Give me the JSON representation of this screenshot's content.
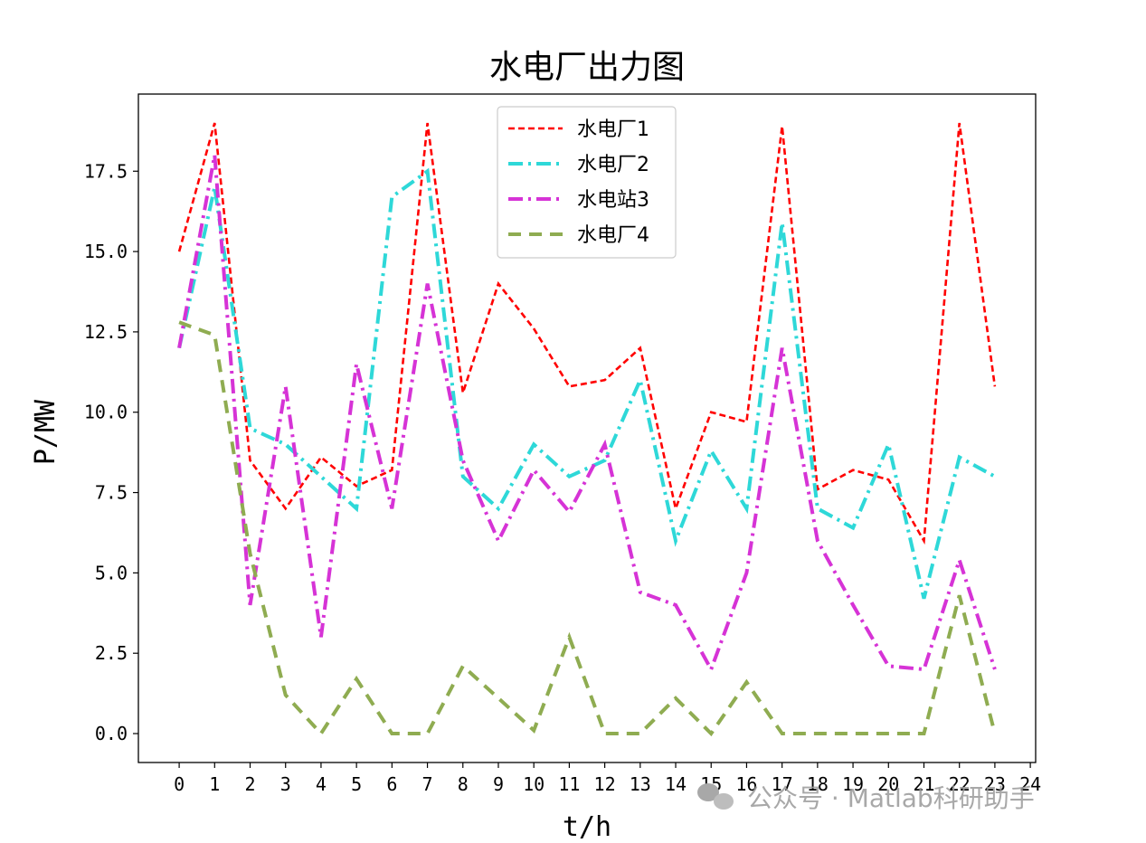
{
  "chart_data": {
    "type": "line",
    "title": "水电厂出力图",
    "xlabel": "t/h",
    "ylabel": "P/MW",
    "x": [
      0,
      1,
      2,
      3,
      4,
      5,
      6,
      7,
      8,
      9,
      10,
      11,
      12,
      13,
      14,
      15,
      16,
      17,
      18,
      19,
      20,
      21,
      22,
      23
    ],
    "xticks": [
      "0",
      "1",
      "2",
      "3",
      "4",
      "5",
      "6",
      "7",
      "8",
      "9",
      "10",
      "11",
      "12",
      "13",
      "14",
      "15",
      "16",
      "17",
      "18",
      "19",
      "20",
      "21",
      "22",
      "23",
      "24"
    ],
    "xlim": [
      -1.15,
      24.15
    ],
    "ylim": [
      -0.9,
      19.9
    ],
    "yticks": [
      "0.0",
      "2.5",
      "5.0",
      "7.5",
      "10.0",
      "12.5",
      "15.0",
      "17.5"
    ],
    "legend_position": "top-center",
    "grid": false,
    "series": [
      {
        "name": "水电厂1",
        "color": "#ff0000",
        "dash": "dashed",
        "values": [
          15.0,
          19.0,
          8.5,
          7.0,
          8.6,
          7.7,
          8.2,
          19.0,
          10.6,
          14.0,
          12.6,
          10.8,
          11.0,
          12.0,
          7.0,
          10.0,
          9.7,
          18.9,
          7.6,
          8.2,
          7.9,
          6.0,
          19.0,
          10.8
        ]
      },
      {
        "name": "水电厂2",
        "color": "#2ed8d8",
        "dash": "dashdot",
        "values": [
          12.0,
          17.0,
          9.5,
          9.0,
          8.0,
          7.0,
          16.7,
          17.5,
          8.0,
          7.0,
          9.0,
          8.0,
          8.5,
          11.0,
          6.0,
          8.8,
          7.0,
          15.9,
          7.0,
          6.4,
          9.0,
          4.2,
          8.6,
          8.0
        ]
      },
      {
        "name": "水电站3",
        "color": "#d633d6",
        "dash": "dashdot",
        "values": [
          12.0,
          18.0,
          4.0,
          10.8,
          3.0,
          11.5,
          7.0,
          14.0,
          8.5,
          6.0,
          8.2,
          6.9,
          9.0,
          4.4,
          4.0,
          2.0,
          5.0,
          12.0,
          6.0,
          4.0,
          2.1,
          2.0,
          5.4,
          2.0
        ]
      },
      {
        "name": "水电厂4",
        "color": "#8fac51",
        "dash": "longdash",
        "values": [
          12.8,
          12.4,
          5.6,
          1.2,
          0.0,
          1.7,
          0.0,
          0.0,
          2.1,
          1.1,
          0.1,
          3.0,
          0.0,
          0.0,
          1.1,
          0.0,
          1.6,
          0.0,
          0.0,
          0.0,
          0.0,
          0.0,
          4.3,
          0.0
        ]
      }
    ]
  },
  "watermark": {
    "text": "公众号 · Matlab科研助手",
    "icon": "wechat-icon"
  }
}
